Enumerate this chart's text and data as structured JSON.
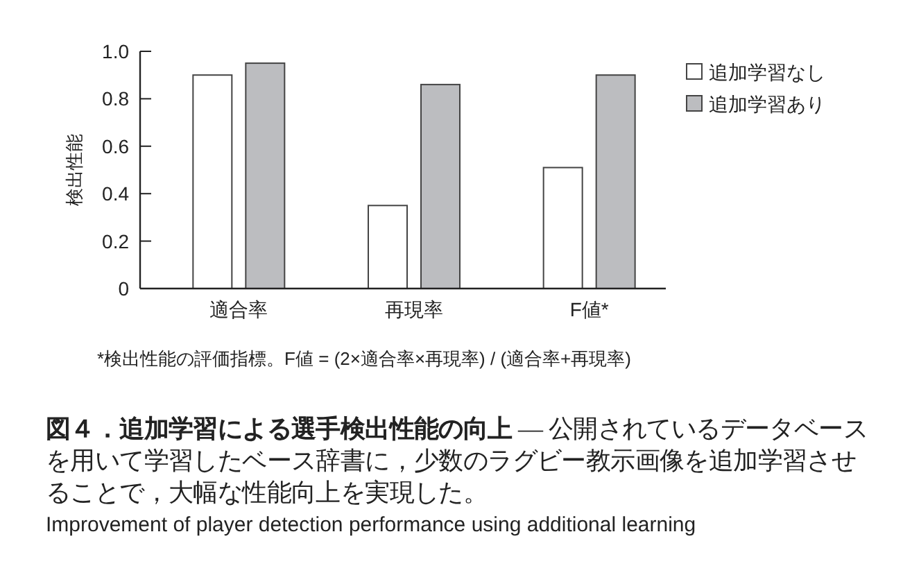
{
  "chart_data": {
    "type": "bar",
    "title": "図４．追加学習による選手検出性能の向上",
    "subtitle": "— 公開されているデータベースを用いて学習したベース辞書に，少数のラグビー教示画像を追加学習させることで，大幅な性能向上を実現した。",
    "ylabel": "検出性能",
    "categories": [
      "適合率",
      "再現率",
      "F値*"
    ],
    "series": [
      {
        "name": "追加学習なし",
        "color": "#ffffff",
        "values": [
          0.9,
          0.35,
          0.51
        ]
      },
      {
        "name": "追加学習あり",
        "color": "#bcbdc0",
        "values": [
          0.95,
          0.86,
          0.9
        ]
      }
    ],
    "ylim": [
      0,
      1.0
    ],
    "yticks": [
      0,
      {
        "value": 0.2,
        "label": "0.2"
      },
      {
        "value": 0.4,
        "label": "0.4"
      },
      {
        "value": 0.6,
        "label": "0.6"
      },
      {
        "value": 0.8,
        "label": "0.8"
      },
      {
        "value": 1.0,
        "label": "1.0"
      }
    ],
    "legend": "right",
    "annotations": [
      "*検出性能の評価指標。F値 = (2×適合率×再現率) / (適合率+再現率)",
      "Improvement of player detection performance using additional learning"
    ]
  }
}
